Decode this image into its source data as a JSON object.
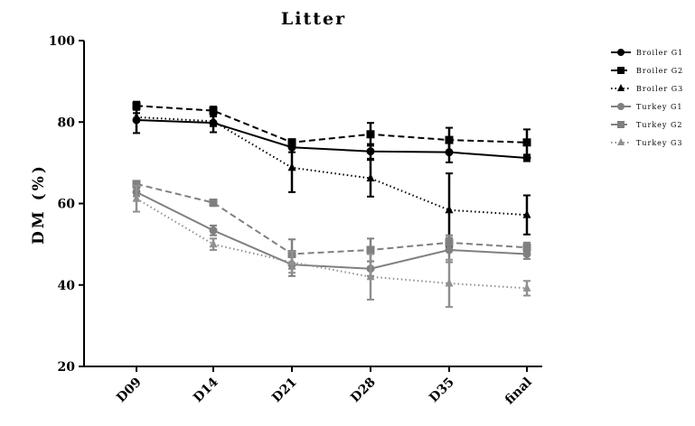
{
  "chart_data": {
    "type": "line",
    "title": "Litter",
    "ylabel": "DM (%)",
    "xlabel": "",
    "ylim": [
      20,
      100
    ],
    "yticks": [
      "20",
      "40",
      "60",
      "80",
      "100"
    ],
    "categories": [
      "D09",
      "D14",
      "D21",
      "D28",
      "D35",
      "final"
    ],
    "legend_position": "right",
    "grid": false,
    "series": [
      {
        "name": "Broiler G1",
        "color": "#000000",
        "line": "solid",
        "marker": "circle",
        "values": [
          80.5,
          79.8,
          73.8,
          72.8,
          72.6,
          71.2
        ],
        "errors": [
          3.2,
          2.3,
          1.2,
          1.8,
          2.5,
          0.8
        ]
      },
      {
        "name": "Broiler G2",
        "color": "#000000",
        "line": "dashed",
        "marker": "square",
        "values": [
          84.0,
          82.8,
          75.0,
          77.0,
          75.6,
          75.0
        ],
        "errors": [
          1.0,
          1.0,
          0.8,
          2.8,
          3.0,
          3.2
        ]
      },
      {
        "name": "Broiler G3",
        "color": "#000000",
        "line": "dotted",
        "marker": "triangle",
        "values": [
          81.2,
          80.2,
          68.8,
          66.2,
          58.4,
          57.2
        ],
        "errors": [
          1.0,
          1.2,
          6.0,
          4.5,
          9.0,
          4.8
        ]
      },
      {
        "name": "Turkey G1",
        "color": "#808080",
        "line": "solid",
        "marker": "circle",
        "values": [
          62.8,
          53.4,
          45.0,
          44.0,
          48.6,
          47.6
        ],
        "errors": [
          1.0,
          1.2,
          2.8,
          1.8,
          3.0,
          1.2
        ]
      },
      {
        "name": "Turkey G2",
        "color": "#808080",
        "line": "dashed",
        "marker": "square",
        "values": [
          64.8,
          60.2,
          47.6,
          48.6,
          50.4,
          49.2
        ],
        "errors": [
          0.6,
          0.8,
          3.6,
          2.8,
          1.8,
          1.2
        ]
      },
      {
        "name": "Turkey G3",
        "color": "#909090",
        "line": "dotted",
        "marker": "triangle",
        "values": [
          61.2,
          50.0,
          45.6,
          42.0,
          40.4,
          39.2
        ],
        "errors": [
          3.2,
          1.4,
          2.6,
          5.6,
          5.8,
          1.8
        ]
      }
    ]
  }
}
